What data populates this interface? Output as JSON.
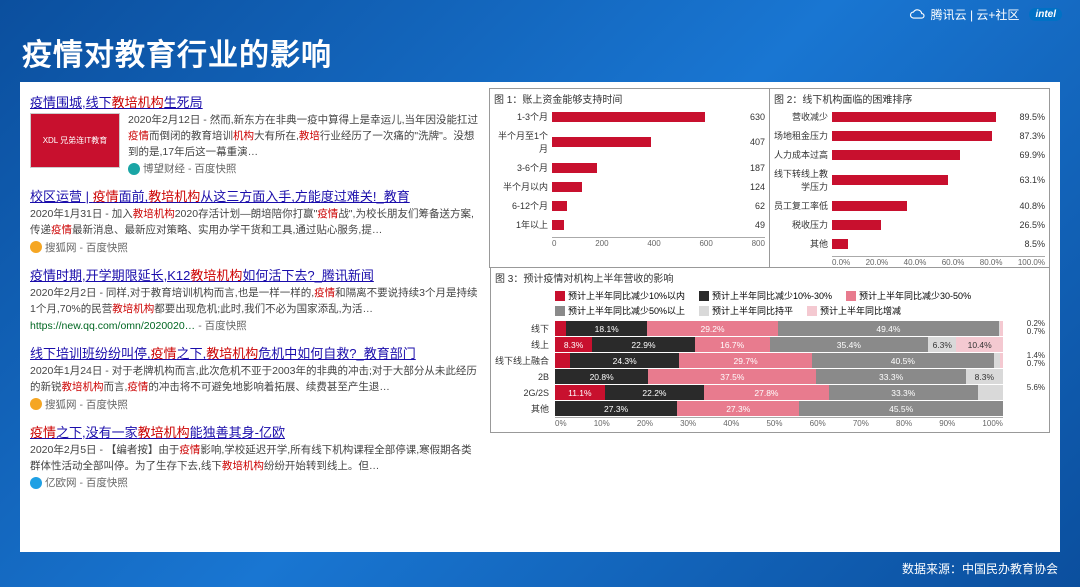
{
  "header": {
    "title": "疫情对教育行业的影响",
    "tencent_cloud": "腾讯云 | 云+社区",
    "intel": "intel"
  },
  "footer": {
    "source": "数据来源：中国民办教育协会"
  },
  "search_results": [
    {
      "title_parts": [
        "疫情围城,线下",
        "教培机构",
        "生死局"
      ],
      "red_idx": [
        1
      ],
      "has_thumb": true,
      "thumb_text": "XDL 兄弟连IT教育",
      "snippet_parts": [
        "2020年2月12日 - 然而,新东方在非典一疫中算得上是幸运儿,当年因没能扛过",
        "疫情",
        "而倒闭的教育培训",
        "机构",
        "大有所在,",
        "教培",
        "行业经历了一次痛的\"洗牌\"。没想到的是,17年后这一幕重演…"
      ],
      "snippet_red": [
        1,
        3,
        5
      ],
      "source": "博望财经",
      "source_color": "#1aa5a5",
      "tail": " - 百度快照"
    },
    {
      "title_parts": [
        "校区运营 | ",
        "疫情",
        "面前,",
        "教培机构",
        "从这三方面入手,方能度过难关!_教育"
      ],
      "red_idx": [
        1,
        3
      ],
      "snippet_parts": [
        "2020年1月31日 - 加入",
        "教培机构",
        "2020存活计划—朗培陪你打赢\"",
        "疫情",
        "战\",为校长朋友们筹备送方案,传递",
        "疫情",
        "最新消息、最新应对策略、实用办学干货和工具,通过贴心服务,提…"
      ],
      "snippet_red": [
        1,
        3,
        5
      ],
      "source": "搜狐网",
      "source_color": "#f5a623",
      "tail": " - 百度快照"
    },
    {
      "title_parts": [
        "疫情时期,开学期限延长,K12",
        "教培机构",
        "如何活下去?_腾讯新闻"
      ],
      "red_idx": [
        1
      ],
      "snippet_parts": [
        "2020年2月2日 - 同样,对于教育培训机构而言,也是一样一样的,",
        "疫情",
        "和隔离不要说持续3个月是持续1个月,70%的民营",
        "教培机构",
        "都要出现危机;此时,我们不必为国家添乱,为活…"
      ],
      "snippet_red": [
        1,
        3
      ],
      "url": "https://new.qq.com/omn/2020020…",
      "tail": " - 百度快照"
    },
    {
      "title_parts": [
        "线下培训班纷纷叫停,",
        "疫情",
        "之下,",
        "教培机构",
        "危机中如何自救?_教育部门"
      ],
      "red_idx": [
        1,
        3
      ],
      "snippet_parts": [
        "2020年1月24日 - 对于老牌机构而言,此次危机不亚于2003年的非典的冲击;对于大部分从未此经历的新锐",
        "教培机构",
        "而言,",
        "疫情",
        "的冲击将不可避免地影响着拓展、续费甚至产生退…"
      ],
      "snippet_red": [
        1,
        3
      ],
      "source": "搜狐网",
      "source_color": "#f5a623",
      "tail": " - 百度快照"
    },
    {
      "title_parts": [
        "疫情",
        "之下,没有一家",
        "教培机构",
        "能独善其身-亿欧"
      ],
      "red_idx": [
        0,
        2
      ],
      "snippet_parts": [
        "2020年2月5日 - 【编者按】由于",
        "疫情",
        "影响,学校延迟开学,所有线下机构课程全部停课,寒假期各类群体性活动全部叫停。为了生存下去,线下",
        "教培机构",
        "纷纷开始转到线上。但…"
      ],
      "snippet_red": [
        1,
        3
      ],
      "source": "亿欧网",
      "source_color": "#1fa0e4",
      "tail": " - 百度快照"
    }
  ],
  "chart1": {
    "title": "图 1：账上资金能够支持时间",
    "bar_color": "#c8102e",
    "max": 800,
    "rows": [
      {
        "label": "1-3个月",
        "val": 630
      },
      {
        "label": "半个月至1个月",
        "val": 407
      },
      {
        "label": "3-6个月",
        "val": 187
      },
      {
        "label": "半个月以内",
        "val": 124
      },
      {
        "label": "6-12个月",
        "val": 62
      },
      {
        "label": "1年以上",
        "val": 49
      }
    ],
    "ticks": [
      "0",
      "200",
      "400",
      "600",
      "800"
    ]
  },
  "chart2": {
    "title": "图 2：线下机构面临的困难排序",
    "bar_color": "#c8102e",
    "max": 100,
    "rows": [
      {
        "label": "营收减少",
        "val": 89.5,
        "disp": "89.5%"
      },
      {
        "label": "场地租金压力",
        "val": 87.3,
        "disp": "87.3%"
      },
      {
        "label": "人力成本过高",
        "val": 69.9,
        "disp": "69.9%"
      },
      {
        "label": "线下转线上教学压力",
        "val": 63.1,
        "disp": "63.1%"
      },
      {
        "label": "员工复工率低",
        "val": 40.8,
        "disp": "40.8%"
      },
      {
        "label": "税收压力",
        "val": 26.5,
        "disp": "26.5%"
      },
      {
        "label": "其他",
        "val": 8.5,
        "disp": "8.5%"
      }
    ],
    "ticks": [
      "0.0%",
      "20.0%",
      "40.0%",
      "60.0%",
      "80.0%",
      "100.0%"
    ]
  },
  "chart3": {
    "title": "图 3：预计疫情对机构上半年营收的影响",
    "colors": {
      "a": "#c8102e",
      "b": "#2a2a2a",
      "c": "#e87b8e",
      "d": "#8a8a8a",
      "e": "#d9d9d9",
      "f": "#f4c9d1"
    },
    "legend": [
      {
        "key": "a",
        "label": "预计上半年同比减少10%以内"
      },
      {
        "key": "b",
        "label": "预计上半年同比减少10%-30%"
      },
      {
        "key": "c",
        "label": "预计上半年同比减少30-50%"
      },
      {
        "key": "d",
        "label": "预计上半年同比减少50%以上"
      },
      {
        "key": "e",
        "label": "预计上半年同比持平"
      },
      {
        "key": "f",
        "label": "预计上半年同比增减"
      }
    ],
    "rows": [
      {
        "label": "线下",
        "segs": [
          {
            "k": "a",
            "v": 2.5,
            "t": "2.5%"
          },
          {
            "k": "b",
            "v": 18.1,
            "t": "18.1%"
          },
          {
            "k": "c",
            "v": 29.2,
            "t": "29.2%"
          },
          {
            "k": "d",
            "v": 49.4,
            "t": "49.4%"
          },
          {
            "k": "e",
            "v": 0.2,
            "t": ""
          },
          {
            "k": "f",
            "v": 0.7,
            "t": ""
          }
        ],
        "tail": [
          "0.2%",
          "0.7%"
        ]
      },
      {
        "label": "线上",
        "segs": [
          {
            "k": "a",
            "v": 8.3,
            "t": "8.3%"
          },
          {
            "k": "b",
            "v": 22.9,
            "t": "22.9%"
          },
          {
            "k": "c",
            "v": 16.7,
            "t": "16.7%"
          },
          {
            "k": "d",
            "v": 35.4,
            "t": "35.4%"
          },
          {
            "k": "e",
            "v": 6.3,
            "t": "6.3%"
          },
          {
            "k": "f",
            "v": 10.4,
            "t": "10.4%"
          }
        ],
        "tail": []
      },
      {
        "label": "线下线上融合",
        "segs": [
          {
            "k": "a",
            "v": 3.4,
            "t": "3.4%"
          },
          {
            "k": "b",
            "v": 24.3,
            "t": "24.3%"
          },
          {
            "k": "c",
            "v": 29.7,
            "t": "29.7%"
          },
          {
            "k": "d",
            "v": 40.5,
            "t": "40.5%"
          },
          {
            "k": "e",
            "v": 1.4,
            "t": ""
          },
          {
            "k": "f",
            "v": 0.7,
            "t": ""
          }
        ],
        "tail": [
          "1.4%",
          "0.7%"
        ]
      },
      {
        "label": "2B",
        "segs": [
          {
            "k": "a",
            "v": 0,
            "t": ""
          },
          {
            "k": "b",
            "v": 20.8,
            "t": "20.8%"
          },
          {
            "k": "c",
            "v": 37.5,
            "t": "37.5%"
          },
          {
            "k": "d",
            "v": 33.3,
            "t": "33.3%"
          },
          {
            "k": "e",
            "v": 8.3,
            "t": "8.3%"
          },
          {
            "k": "f",
            "v": 0,
            "t": ""
          }
        ],
        "tail": []
      },
      {
        "label": "2G/2S",
        "segs": [
          {
            "k": "a",
            "v": 11.1,
            "t": "11.1%"
          },
          {
            "k": "b",
            "v": 22.2,
            "t": "22.2%"
          },
          {
            "k": "c",
            "v": 27.8,
            "t": "27.8%"
          },
          {
            "k": "d",
            "v": 33.3,
            "t": "33.3%"
          },
          {
            "k": "e",
            "v": 5.6,
            "t": ""
          },
          {
            "k": "f",
            "v": 0,
            "t": ""
          }
        ],
        "tail": [
          "5.6%"
        ]
      },
      {
        "label": "其他",
        "segs": [
          {
            "k": "a",
            "v": 0,
            "t": ""
          },
          {
            "k": "b",
            "v": 27.3,
            "t": "27.3%"
          },
          {
            "k": "c",
            "v": 27.3,
            "t": "27.3%"
          },
          {
            "k": "d",
            "v": 45.5,
            "t": "45.5%"
          },
          {
            "k": "e",
            "v": 0,
            "t": ""
          },
          {
            "k": "f",
            "v": 0,
            "t": ""
          }
        ],
        "tail": []
      }
    ],
    "ticks": [
      "0%",
      "10%",
      "20%",
      "30%",
      "40%",
      "50%",
      "60%",
      "70%",
      "80%",
      "90%",
      "100%"
    ]
  }
}
